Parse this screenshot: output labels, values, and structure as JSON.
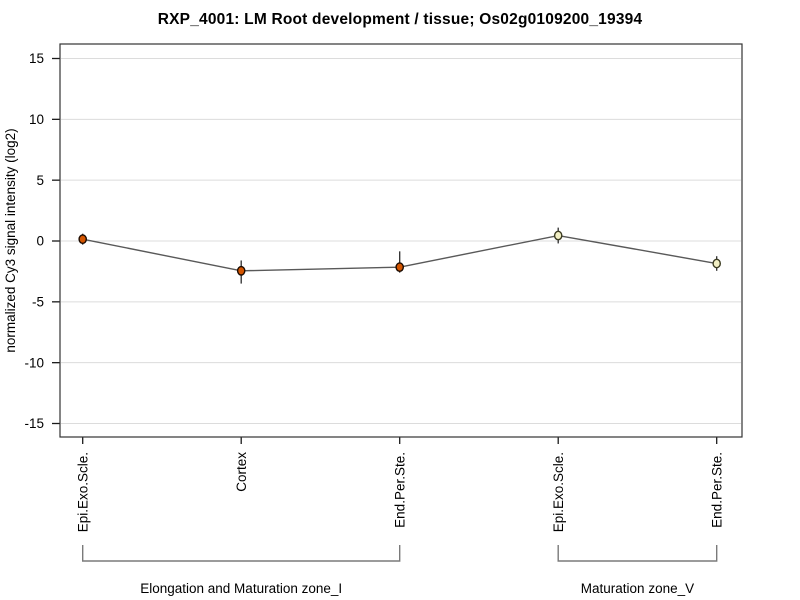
{
  "title": "RXP_4001: LM Root development / tissue; Os02g0109200_19394",
  "chart_data": {
    "type": "line",
    "title": "RXP_4001: LM Root development / tissue; Os02g0109200_19394",
    "xlabel": "",
    "ylabel": "normalized Cy3 signal intensity (log2)",
    "ylim": [
      -16.1,
      16.2
    ],
    "yticks": [
      15,
      10,
      5,
      0,
      -5,
      -10,
      -15
    ],
    "grid": true,
    "legend": "none",
    "categories": [
      "Epi.Exo.Scle.",
      "Cortex",
      "End.Per.Ste.",
      "Epi.Exo.Scle.",
      "End.Per.Ste."
    ],
    "values": [
      0.15,
      -2.45,
      -2.15,
      0.45,
      -1.85
    ],
    "error_low": [
      -0.3,
      -3.5,
      -2.6,
      -0.2,
      -2.45
    ],
    "error_high": [
      0.6,
      -1.6,
      -0.85,
      1.1,
      -1.25
    ],
    "groups": [
      {
        "label": "Elongation and Maturation zone_I",
        "from": 0,
        "to": 2
      },
      {
        "label": "Maturation zone_V",
        "from": 3,
        "to": 4
      }
    ],
    "colors": {
      "marker_fill": [
        "#d45500",
        "#d45500",
        "#d45500",
        "#f2efc4",
        "#f2efc4"
      ],
      "marker_stroke": [
        "#1a0a00",
        "#1a0a00",
        "#1a0a00",
        "#3c3c22",
        "#3c3c22"
      ],
      "line": "#595959",
      "error_bar": "#2b2b2b",
      "grid": "#dcdcdc",
      "frame": "#333333",
      "bracket": "#7a7a7a"
    }
  }
}
